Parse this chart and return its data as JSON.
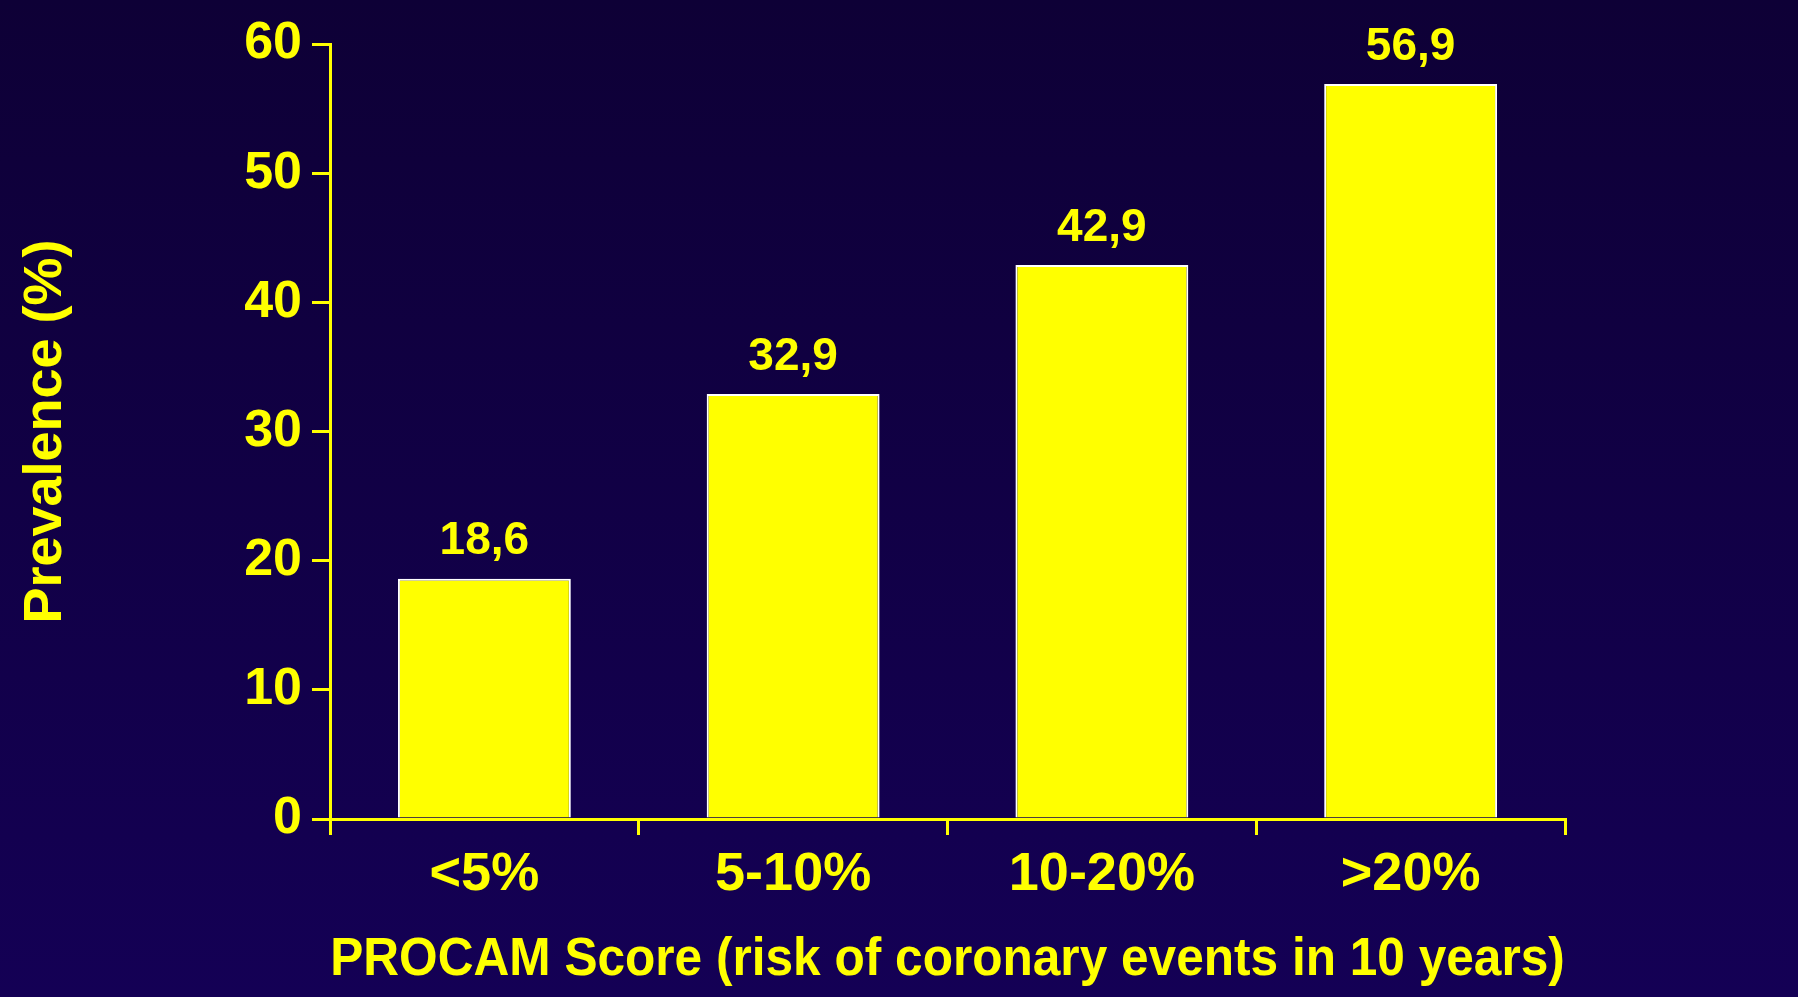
{
  "chart_data": {
    "type": "bar",
    "xlabel": "PROCAM Score (risk of coronary events in 10 years)",
    "ylabel": "Prevalence (%)",
    "categories": [
      "<5%",
      "5-10%",
      "10-20%",
      ">20%"
    ],
    "values": [
      18.6,
      32.9,
      42.9,
      56.9
    ],
    "value_labels": [
      "18,6",
      "32,9",
      "42,9",
      "56,9"
    ],
    "color": "#ffff00",
    "ylim": [
      0,
      60
    ],
    "yticks": [
      0,
      10,
      20,
      30,
      40,
      50,
      60
    ],
    "grid": false,
    "legend": false
  }
}
